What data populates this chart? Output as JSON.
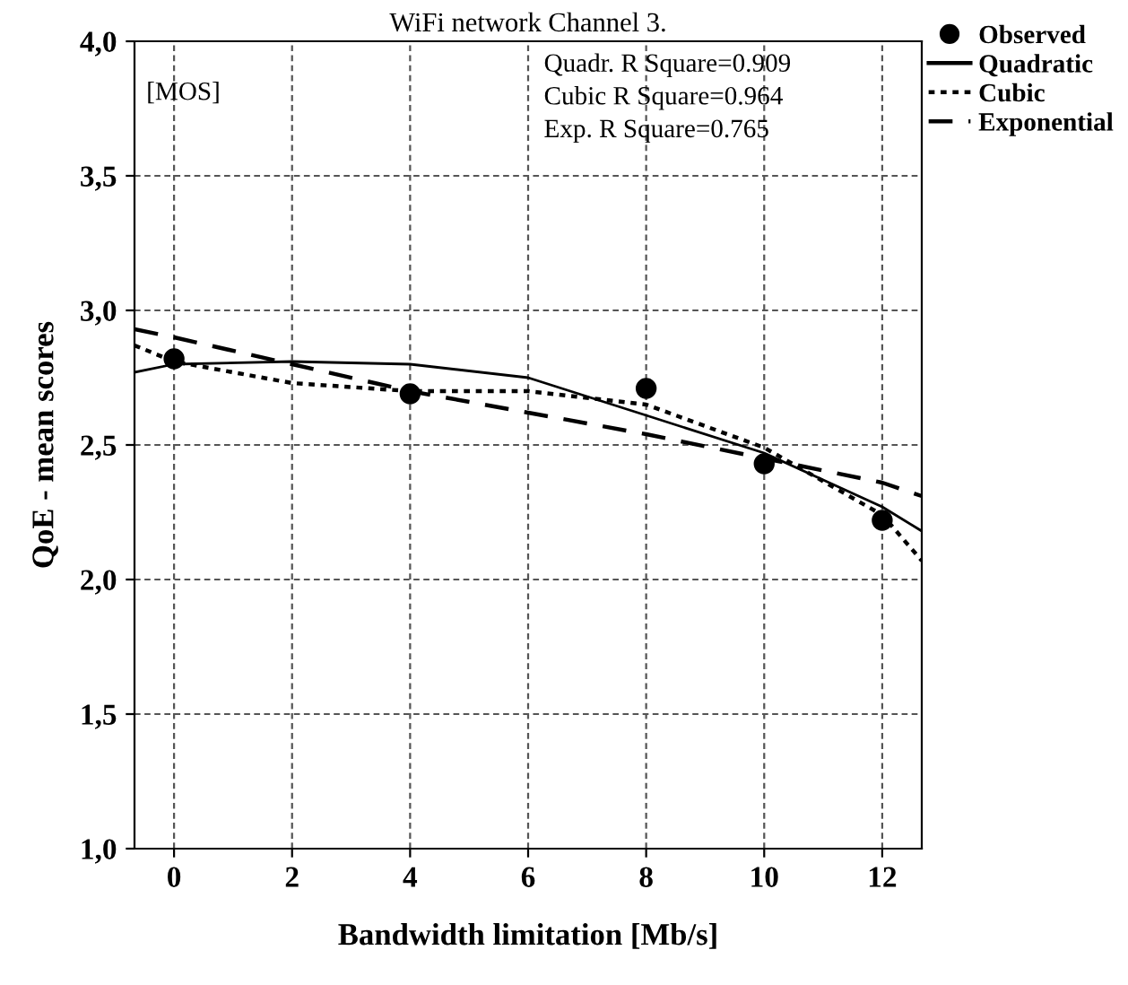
{
  "chart_data": {
    "type": "line",
    "title": "WiFi network Channel 3.",
    "xlabel": "Bandwidth limitation [Mb/s]",
    "ylabel": "QoE - mean scores",
    "xlim": [
      -0.67,
      12.67
    ],
    "xticks": [
      0,
      2,
      4,
      6,
      8,
      10,
      12
    ],
    "ylim": [
      1.0,
      4.0
    ],
    "yticks": [
      {
        "value": 1.0,
        "label": "1,0"
      },
      {
        "value": 1.5,
        "label": "1,5"
      },
      {
        "value": 2.0,
        "label": "2,0"
      },
      {
        "value": 2.5,
        "label": "2,5"
      },
      {
        "value": 3.0,
        "label": "3,0"
      },
      {
        "value": 3.5,
        "label": "3,5"
      },
      {
        "value": 4.0,
        "label": "4,0"
      }
    ],
    "grid": true,
    "legend": "top right",
    "annotations": [
      "[MOS]",
      "Quadr. R Square=0.909",
      "Cubic R Square=0.964",
      "Exp. R Square=0.765"
    ],
    "series": [
      {
        "name": "Observed",
        "type": "scatter",
        "marker": "circle",
        "color": "#000000",
        "x": [
          0,
          4,
          8,
          10,
          12
        ],
        "values": [
          2.82,
          2.69,
          2.71,
          2.43,
          2.22
        ]
      },
      {
        "name": "Quadratic",
        "line_style": "solid",
        "color": "#000000",
        "x": [
          -0.67,
          0,
          2,
          4,
          6,
          8,
          10,
          12,
          12.67
        ],
        "values": [
          2.77,
          2.8,
          2.81,
          2.8,
          2.75,
          2.61,
          2.47,
          2.27,
          2.18
        ]
      },
      {
        "name": "Cubic",
        "line_style": "dotted",
        "color": "#000000",
        "x": [
          -0.67,
          0,
          2,
          4,
          6,
          8,
          10,
          12,
          12.67
        ],
        "values": [
          2.87,
          2.81,
          2.73,
          2.7,
          2.7,
          2.65,
          2.49,
          2.24,
          2.07
        ]
      },
      {
        "name": "Exponential",
        "line_style": "dashed",
        "color": "#000000",
        "x": [
          -0.67,
          0,
          2,
          4,
          6,
          8,
          10,
          12,
          12.67
        ],
        "values": [
          2.93,
          2.9,
          2.8,
          2.7,
          2.62,
          2.54,
          2.45,
          2.36,
          2.31
        ]
      }
    ]
  }
}
